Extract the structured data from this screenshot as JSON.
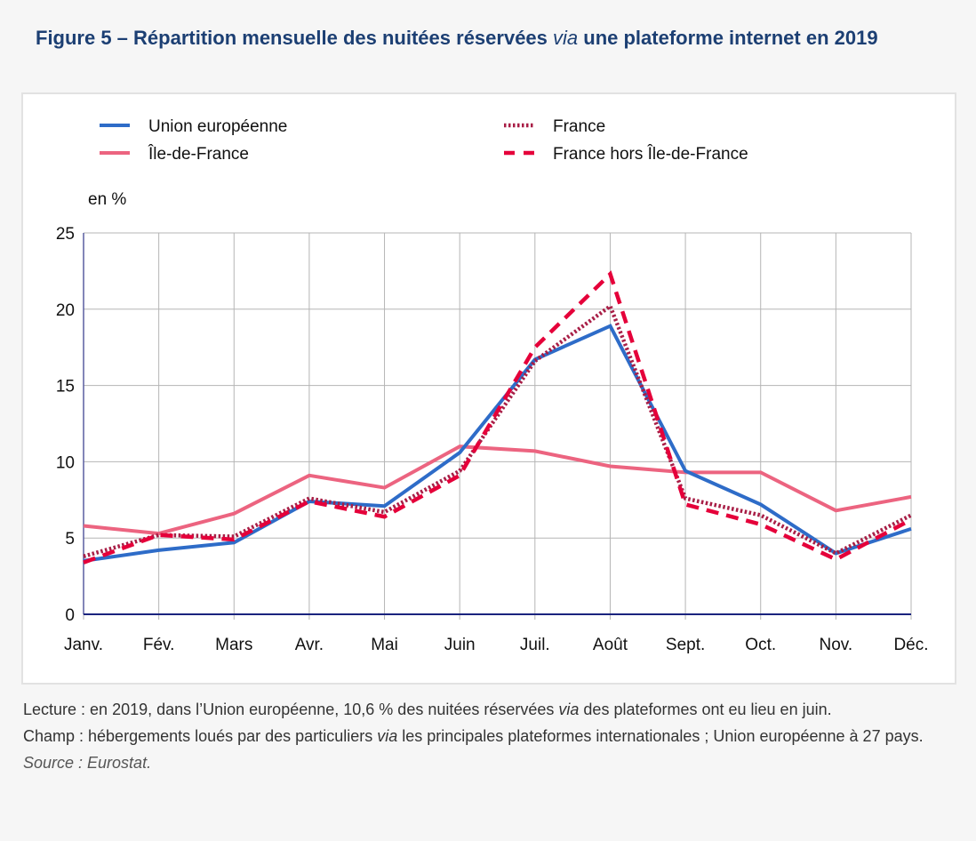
{
  "title": {
    "part1": "Figure 5 – Répartition mensuelle des nuitées réservées ",
    "italic": "via",
    "part2": " une plateforme internet en 2019"
  },
  "notes": {
    "lecture_part1": "Lecture : en 2019, dans l’Union européenne, 10,6 % des nuitées réservées ",
    "lecture_italic": "via",
    "lecture_part2": " des plateformes ont eu lieu en juin.",
    "champ_part1": "Champ : hébergements loués par des particuliers ",
    "champ_italic": "via",
    "champ_part2": " les principales plateformes internationales ; Union européenne à 27 pays.",
    "source": "Source : Eurostat."
  },
  "chart_data": {
    "type": "line",
    "title": "Figure 5 – Répartition mensuelle des nuitées réservées via une plateforme internet en 2019",
    "ylabel": "en %",
    "xlabel": "",
    "ylim": [
      0,
      25
    ],
    "yticks": [
      "0",
      "5",
      "10",
      "15",
      "20",
      "25"
    ],
    "ytick_values": [
      0,
      5,
      10,
      15,
      20,
      25
    ],
    "grid": true,
    "legend_position": "top",
    "categories": [
      "Janv.",
      "Fév.",
      "Mars",
      "Avr.",
      "Mai",
      "Juin",
      "Juil.",
      "Août",
      "Sept.",
      "Oct.",
      "Nov.",
      "Déc."
    ],
    "series": [
      {
        "name": "Union européenne",
        "color": "#2e6cc8",
        "style": "solid",
        "values": [
          3.5,
          4.2,
          4.7,
          7.4,
          7.1,
          10.6,
          16.7,
          18.9,
          9.4,
          7.2,
          4.0,
          5.6
        ]
      },
      {
        "name": "Île-de-France",
        "color": "#ec6480",
        "style": "solid",
        "values": [
          5.8,
          5.3,
          6.6,
          9.1,
          8.3,
          11.0,
          10.7,
          9.7,
          9.3,
          9.3,
          6.8,
          7.7
        ]
      },
      {
        "name": "France",
        "color": "#a81e46",
        "style": "dotted",
        "values": [
          3.8,
          5.2,
          5.1,
          7.6,
          6.7,
          9.4,
          16.6,
          20.2,
          7.6,
          6.5,
          4.0,
          6.5
        ]
      },
      {
        "name": "France hors Île-de-France",
        "color": "#e5003a",
        "style": "dashed",
        "values": [
          3.4,
          5.2,
          4.9,
          7.4,
          6.4,
          9.1,
          17.5,
          22.3,
          7.2,
          5.9,
          3.6,
          6.2
        ]
      }
    ]
  }
}
